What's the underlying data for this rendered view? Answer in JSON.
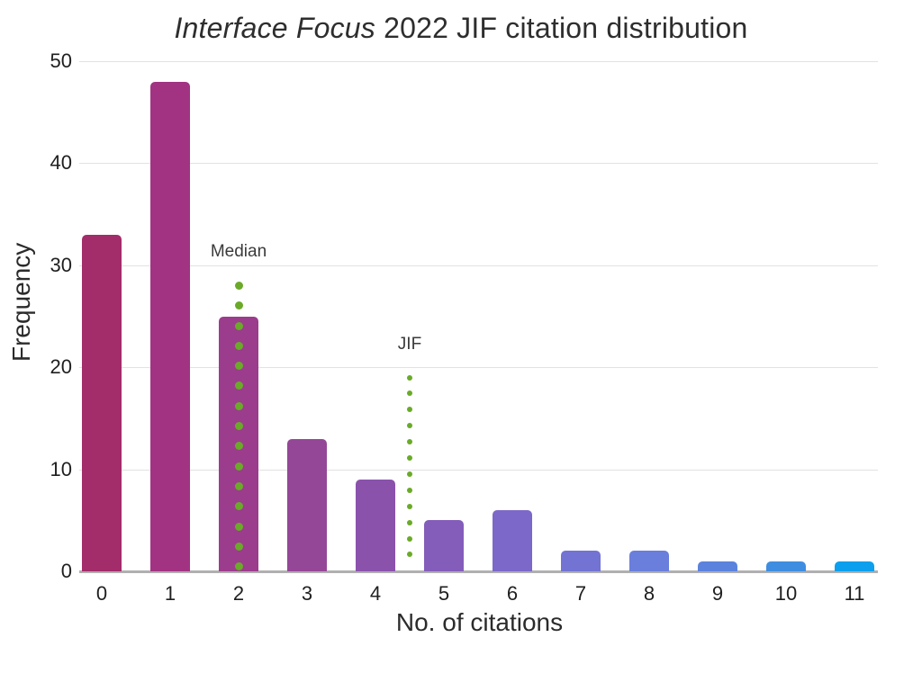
{
  "chart_data": {
    "type": "bar",
    "title": "Interface Focus 2022 JIF citation distribution",
    "title_italic": "Interface Focus",
    "title_rest": " 2022 JIF citation distribution",
    "xlabel": "No. of citations",
    "ylabel": "Frequency",
    "categories": [
      "0",
      "1",
      "2",
      "3",
      "4",
      "5",
      "6",
      "7",
      "8",
      "9",
      "10",
      "11"
    ],
    "values": [
      33,
      48,
      25,
      13,
      9,
      5,
      6,
      2,
      2,
      1,
      1,
      1
    ],
    "bar_colors": [
      "#a32c6a",
      "#a23382",
      "#9c3c8c",
      "#954797",
      "#8b52ac",
      "#845cba",
      "#7b68c8",
      "#7273d2",
      "#6a7edb",
      "#5b82dd",
      "#3f8de0",
      "#0c9fed"
    ],
    "ylim": [
      0,
      50
    ],
    "yticks": [
      0,
      10,
      20,
      30,
      40,
      50
    ],
    "grid": true,
    "legend": null,
    "annotation_color": "#6aaa28",
    "annotations": [
      {
        "label": "Median",
        "x": 2,
        "top_value": 28,
        "dot_size": 9,
        "dot_gap": 22.3
      },
      {
        "label": "JIF",
        "x": 4.5,
        "top_value": 19,
        "dot_size": 6,
        "dot_gap": 17.9
      }
    ]
  }
}
